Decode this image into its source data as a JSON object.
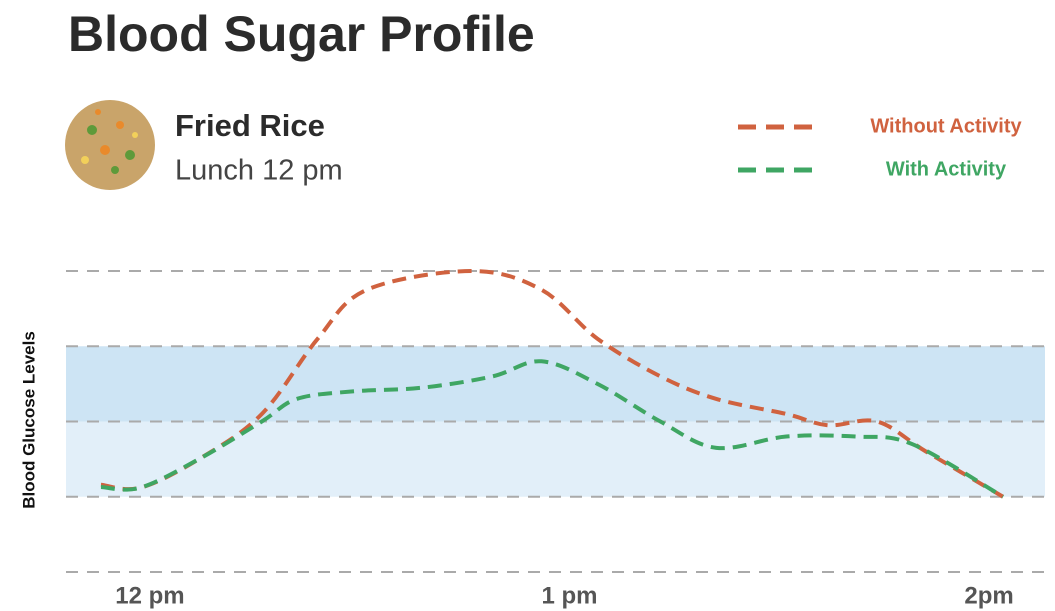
{
  "chart_data": {
    "type": "line",
    "title": "Blood Sugar Profile",
    "meal": "Fried Rice",
    "subtitle": "Lunch 12 pm",
    "ylabel": "Blood Glucose Levels",
    "xlim": [
      -12,
      128
    ],
    "xticks": [
      {
        "value": 0,
        "label": "12 pm"
      },
      {
        "value": 60,
        "label": "1 pm"
      },
      {
        "value": 120,
        "label": "2pm"
      }
    ],
    "ylim": [
      0,
      4
    ],
    "yticks": [
      0,
      1,
      2,
      3,
      4
    ],
    "grid": true,
    "bands": [
      {
        "from": 1,
        "to": 2,
        "color": "#e2eff9"
      },
      {
        "from": 2,
        "to": 3,
        "color": "#cde4f4"
      }
    ],
    "legend": "top-right",
    "series": [
      {
        "name": "Without Activity",
        "color": "#d0623f",
        "x": [
          -7,
          -1.4,
          7,
          16,
          24,
          31,
          46,
          56,
          64,
          73,
          81,
          91,
          97,
          104,
          111,
          122
        ],
        "values": [
          1.16,
          1.12,
          1.5,
          2.1,
          3.1,
          3.75,
          4.0,
          3.75,
          3.1,
          2.6,
          2.3,
          2.1,
          1.95,
          2.0,
          1.6,
          1.0
        ]
      },
      {
        "name": "With Activity",
        "color": "#3fa663",
        "x": [
          -7,
          -1.4,
          7,
          16,
          21,
          29,
          39,
          49,
          56,
          64,
          73,
          81,
          91,
          101,
          109,
          122
        ],
        "values": [
          1.13,
          1.12,
          1.5,
          2.0,
          2.3,
          2.4,
          2.45,
          2.6,
          2.8,
          2.5,
          2.0,
          1.65,
          1.8,
          1.8,
          1.7,
          1.0
        ]
      }
    ]
  }
}
